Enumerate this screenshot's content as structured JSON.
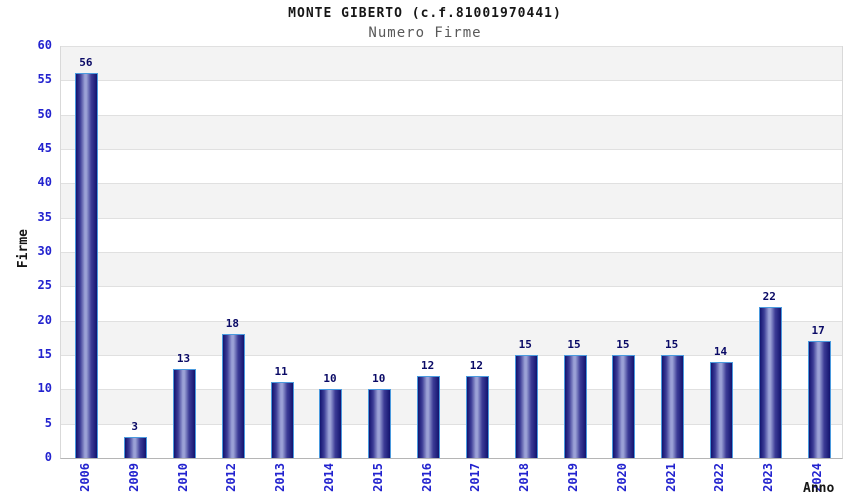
{
  "chart": {
    "title": "MONTE GIBERTO (c.f.81001970441)",
    "subtitle": "Numero Firme",
    "ylabel": "Firme",
    "xlabel": "Anno"
  },
  "chart_data": {
    "type": "bar",
    "title": "MONTE GIBERTO (c.f.81001970441)",
    "subtitle": "Numero Firme",
    "xlabel": "Anno",
    "ylabel": "Firme",
    "categories": [
      "2006",
      "2009",
      "2010",
      "2012",
      "2013",
      "2014",
      "2015",
      "2016",
      "2017",
      "2018",
      "2019",
      "2020",
      "2021",
      "2022",
      "2023",
      "2024"
    ],
    "values": [
      56,
      3,
      13,
      18,
      11,
      10,
      10,
      12,
      12,
      15,
      15,
      15,
      15,
      14,
      22,
      17
    ],
    "ylim": [
      0,
      60
    ],
    "ytick_step": 5,
    "grid": "horizontal-bands",
    "legend_position": "none"
  },
  "colors": {
    "bar_edge_dark": "#13136f",
    "bar_mid": "#3d3d97",
    "bar_center_light": "#9ba1d6",
    "bar_border": "#4a9ade",
    "tick_label_blue": "#2323cf",
    "value_label_navy": "#0a0a66",
    "band_gray": "#f3f3f3",
    "band_white": "#ffffff",
    "gridline": "#e0e0e0",
    "title_black": "#161616",
    "subtitle_gray": "#595959"
  }
}
